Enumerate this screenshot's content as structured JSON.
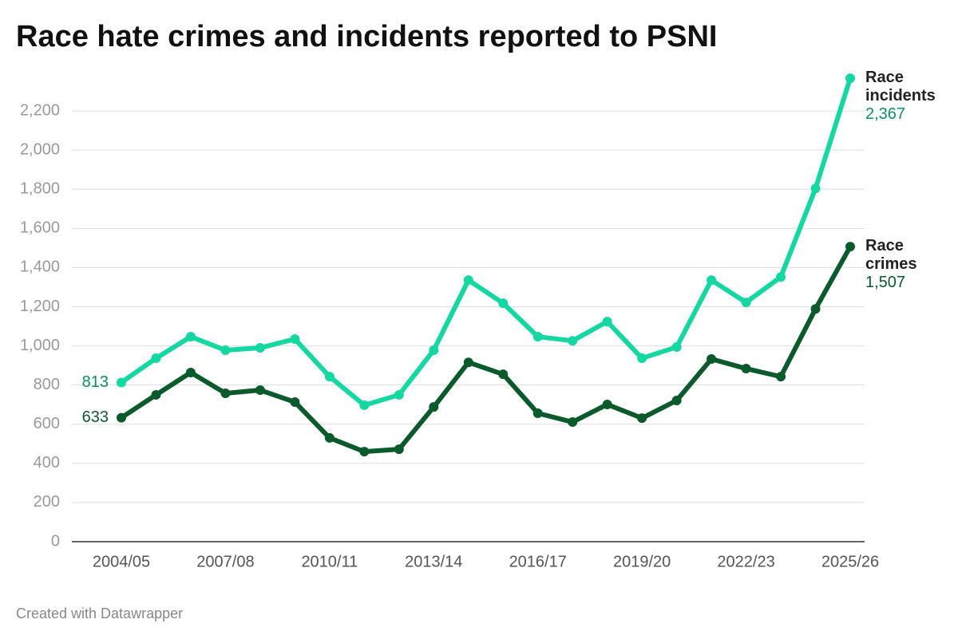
{
  "chart_data": {
    "type": "line",
    "title": "Race hate crimes and incidents reported to PSNI",
    "credit": "Created with Datawrapper",
    "categories": [
      "2004/05",
      null,
      null,
      "2007/08",
      null,
      null,
      "2010/11",
      null,
      null,
      "2013/14",
      null,
      null,
      "2016/17",
      null,
      null,
      "2019/20",
      null,
      null,
      "2022/23",
      null,
      null,
      "2025/26"
    ],
    "ylim": [
      0,
      2400
    ],
    "yticks": [
      0,
      200,
      400,
      600,
      800,
      {
        "value": 1000,
        "label": "1,000"
      },
      {
        "value": 1200,
        "label": "1,200"
      },
      {
        "value": 1400,
        "label": "1,400"
      },
      {
        "value": 1600,
        "label": "1,600"
      },
      {
        "value": 1800,
        "label": "1,800"
      },
      {
        "value": 2000,
        "label": "2,000"
      },
      {
        "value": 2200,
        "label": "2,200"
      }
    ],
    "grid": true,
    "series": [
      {
        "name": "Race incidents",
        "color": "#14d7a1",
        "label_color": "#0c8f60",
        "values": [
          813,
          937,
          1047,
          978,
          990,
          1035,
          843,
          697,
          750,
          978,
          1336,
          1218,
          1047,
          1026,
          1124,
          937,
          994,
          1336,
          1222,
          1352,
          1804,
          2367
        ],
        "value_labels": [
          "813",
          null,
          null,
          null,
          null,
          null,
          null,
          null,
          null,
          null,
          null,
          null,
          null,
          null,
          null,
          null,
          null,
          null,
          null,
          null,
          null,
          "2,367"
        ]
      },
      {
        "name": "Race crimes",
        "color": "#0b5a2c",
        "label_color": "#0b5a2c",
        "values": [
          633,
          750,
          864,
          758,
          774,
          713,
          530,
          460,
          472,
          688,
          916,
          855,
          656,
          611,
          701,
          631,
          721,
          933,
          884,
          843,
          1189,
          1507
        ],
        "value_labels": [
          "633",
          null,
          null,
          null,
          null,
          null,
          null,
          null,
          null,
          null,
          null,
          null,
          null,
          null,
          null,
          null,
          null,
          null,
          null,
          null,
          null,
          "1,507"
        ]
      }
    ]
  }
}
